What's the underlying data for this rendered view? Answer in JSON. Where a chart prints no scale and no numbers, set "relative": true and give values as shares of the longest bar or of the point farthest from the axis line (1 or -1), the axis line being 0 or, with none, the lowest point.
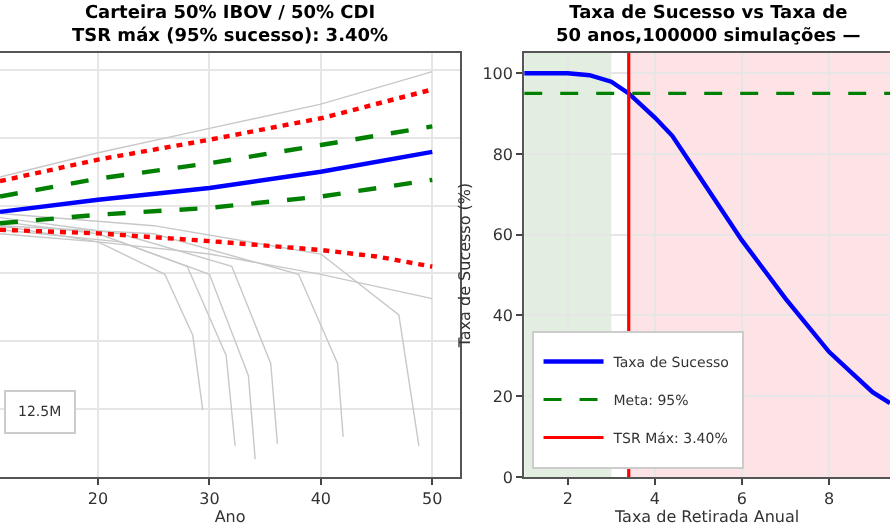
{
  "chart_data": [
    {
      "type": "line",
      "title": "Carteira 50% IBOV / 50% CDI",
      "subtitle": "TSR máx (95% sucesso): 3.40%",
      "xlabel": "Ano",
      "relative": true,
      "xlim": [
        11.2,
        52.5
      ],
      "xticks": [
        20,
        30,
        40,
        50
      ],
      "grid": true,
      "legend": false,
      "annotations": [
        "12.5M"
      ],
      "series": [
        {
          "color": "#c8c8c8",
          "line_style": "solid",
          "x": [
            11.2,
            20,
            30,
            40,
            50
          ],
          "values": [
            0.74,
            0.8,
            0.86,
            0.92,
            1.0
          ]
        },
        {
          "color": "#c8c8c8",
          "line_style": "solid",
          "x": [
            11.2,
            20,
            30,
            40,
            50
          ],
          "values": [
            0.6,
            0.58,
            0.55,
            0.5,
            0.44
          ]
        },
        {
          "color": "#c8c8c8",
          "line_style": "solid",
          "x": [
            11.2,
            20,
            26,
            28.5,
            29.4
          ],
          "values": [
            0.62,
            0.58,
            0.5,
            0.35,
            0.165
          ]
        },
        {
          "color": "#c8c8c8",
          "line_style": "solid",
          "x": [
            11.2,
            20,
            28,
            31.5,
            32.3
          ],
          "values": [
            0.63,
            0.6,
            0.52,
            0.3,
            0.077
          ]
        },
        {
          "color": "#c8c8c8",
          "line_style": "solid",
          "x": [
            11.2,
            22,
            30,
            33.5,
            34.1
          ],
          "values": [
            0.61,
            0.58,
            0.5,
            0.25,
            0.044
          ]
        },
        {
          "color": "#c8c8c8",
          "line_style": "solid",
          "x": [
            11.2,
            22,
            32,
            35.5,
            36.1
          ],
          "values": [
            0.64,
            0.6,
            0.52,
            0.28,
            0.082
          ]
        },
        {
          "color": "#c8c8c8",
          "line_style": "solid",
          "x": [
            11.2,
            25,
            38,
            41.5,
            42
          ],
          "values": [
            0.62,
            0.6,
            0.5,
            0.28,
            0.099
          ]
        },
        {
          "color": "#c8c8c8",
          "line_style": "solid",
          "x": [
            11.2,
            25,
            40,
            47,
            48.8
          ],
          "values": [
            0.65,
            0.62,
            0.55,
            0.4,
            0.077
          ]
        },
        {
          "color": "#ff0000",
          "line_style": "dotted",
          "x": [
            11.2,
            20,
            30,
            40,
            50
          ],
          "values": [
            0.73,
            0.783,
            0.832,
            0.885,
            0.956
          ]
        },
        {
          "color": "#ff0000",
          "line_style": "dotted",
          "x": [
            11.2,
            20,
            30,
            40,
            45,
            50
          ],
          "values": [
            0.61,
            0.601,
            0.582,
            0.56,
            0.544,
            0.519
          ]
        },
        {
          "color": "#008000",
          "line_style": "dashed",
          "x": [
            11.2,
            20,
            30,
            40,
            50
          ],
          "values": [
            0.692,
            0.736,
            0.774,
            0.819,
            0.865
          ]
        },
        {
          "color": "#008000",
          "line_style": "dashed",
          "x": [
            11.2,
            20,
            30,
            40,
            50
          ],
          "values": [
            0.626,
            0.647,
            0.664,
            0.692,
            0.733
          ]
        },
        {
          "color": "#0000ff",
          "line_style": "solid",
          "x": [
            11.2,
            20,
            30,
            40,
            50
          ],
          "values": [
            0.654,
            0.684,
            0.713,
            0.753,
            0.802
          ]
        }
      ]
    },
    {
      "type": "line",
      "title": "Taxa de Sucesso vs Taxa de",
      "subtitle": "50 anos,100000 simulações —",
      "xlabel": "Taxa de Retirada Anual",
      "ylabel": "Taxa de Sucesso (%)",
      "xlim": [
        1,
        9.4
      ],
      "xticks": [
        2,
        4,
        6,
        8
      ],
      "ylim": [
        0,
        105
      ],
      "yticks": [
        0,
        20,
        40,
        60,
        80,
        100
      ],
      "grid": true,
      "legend": "bottom left",
      "series": [
        {
          "name": "Taxa de Sucesso",
          "color": "#0000ff",
          "x": [
            1,
            2,
            2.5,
            3,
            3.4,
            4,
            4.4,
            5,
            6,
            7,
            8,
            9,
            9.4
          ],
          "values": [
            100,
            100,
            99.5,
            97.9,
            95,
            89,
            84.5,
            74.8,
            58.6,
            44.2,
            31,
            21,
            18.3
          ]
        }
      ],
      "ref_lines": [
        {
          "axis": "y",
          "value": 95,
          "label": "Meta: 95%",
          "color": "#008000",
          "line_style": "dashed"
        },
        {
          "axis": "x",
          "value": 3.4,
          "label": "TSR Máx: 3.40%",
          "color": "#ff0000",
          "line_style": "solid"
        }
      ],
      "bands": [
        {
          "axis": "x",
          "from": 1,
          "to": 3,
          "color": "#e2eedf"
        },
        {
          "axis": "x",
          "from": 3.4,
          "to": 9.4,
          "color": "#fde3e6"
        }
      ]
    }
  ]
}
